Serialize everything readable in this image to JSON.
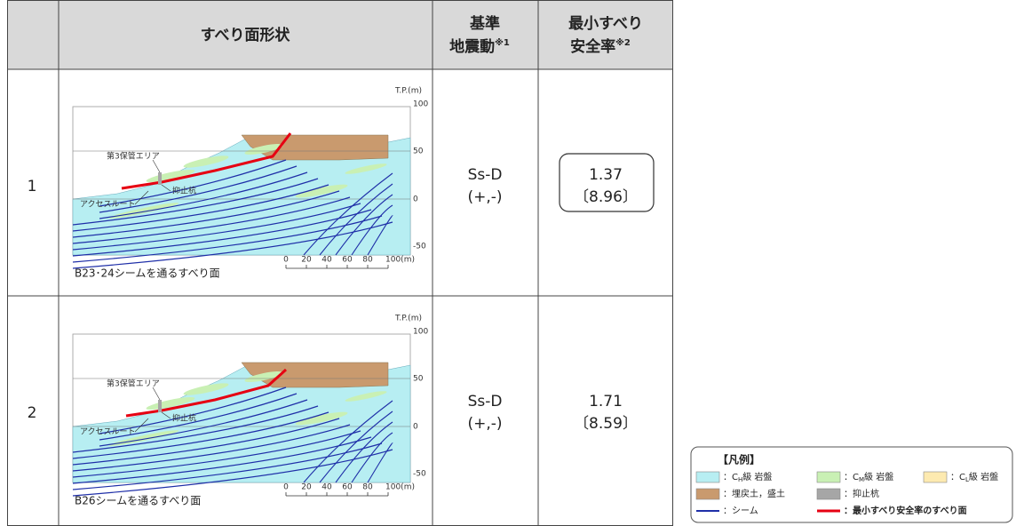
{
  "table": {
    "header": {
      "shape": "すべり面形状",
      "motion": [
        "基準",
        "地震動"
      ],
      "motion_note": "※1",
      "factor": [
        "最小すべり",
        "安全率"
      ],
      "factor_note": "※2"
    },
    "rows": [
      {
        "no": "1",
        "figure": {
          "axis_label": "T.P.(m)",
          "elevations": [
            "100",
            "50",
            "0",
            "-50"
          ],
          "scale": [
            "0",
            "20",
            "40",
            "60",
            "80",
            "100(m)"
          ],
          "labels": [
            "第3保管エリア",
            "抑止杭",
            "アクセスルート"
          ],
          "caption": "B23･24シームを通るすべり面"
        },
        "motion": [
          "Ss-D",
          "(+,-)"
        ],
        "factor": [
          "1.37",
          "〔8.96〕"
        ],
        "boxed": true
      },
      {
        "no": "2",
        "figure": {
          "axis_label": "T.P.(m)",
          "elevations": [
            "100",
            "50",
            "0",
            "-50"
          ],
          "scale": [
            "0",
            "20",
            "40",
            "60",
            "80",
            "100(m)"
          ],
          "labels": [
            "第3保管エリア",
            "抑止杭",
            "アクセスルート"
          ],
          "caption": "B26シームを通るすべり面"
        },
        "motion": [
          "Ss-D",
          "(+,-)"
        ],
        "factor": [
          "1.71",
          "〔8.59〕"
        ],
        "boxed": false
      }
    ]
  },
  "legend": {
    "title": "【凡例】",
    "items": [
      {
        "kind": "box",
        "color": "#b7eef2",
        "text": "：C",
        "sub": "H",
        "rest": "級 岩盤"
      },
      {
        "kind": "box",
        "color": "#c9f0b4",
        "text": "：C",
        "sub": "M",
        "rest": "級 岩盤"
      },
      {
        "kind": "box",
        "color": "#fdeab0",
        "text": "：C",
        "sub": "L",
        "rest": "級 岩盤"
      },
      {
        "kind": "box",
        "color": "#c99a6e",
        "text": "：埋戻土，盛土"
      },
      {
        "kind": "box",
        "color": "#a6a6a6",
        "text": "：抑止杭"
      },
      {
        "kind": "line",
        "color": "#1f2fa8",
        "text": "：シーム"
      },
      {
        "kind": "line",
        "color": "#e60012",
        "text": "：最小すべり安全率のすべり面",
        "bold": true
      }
    ]
  }
}
